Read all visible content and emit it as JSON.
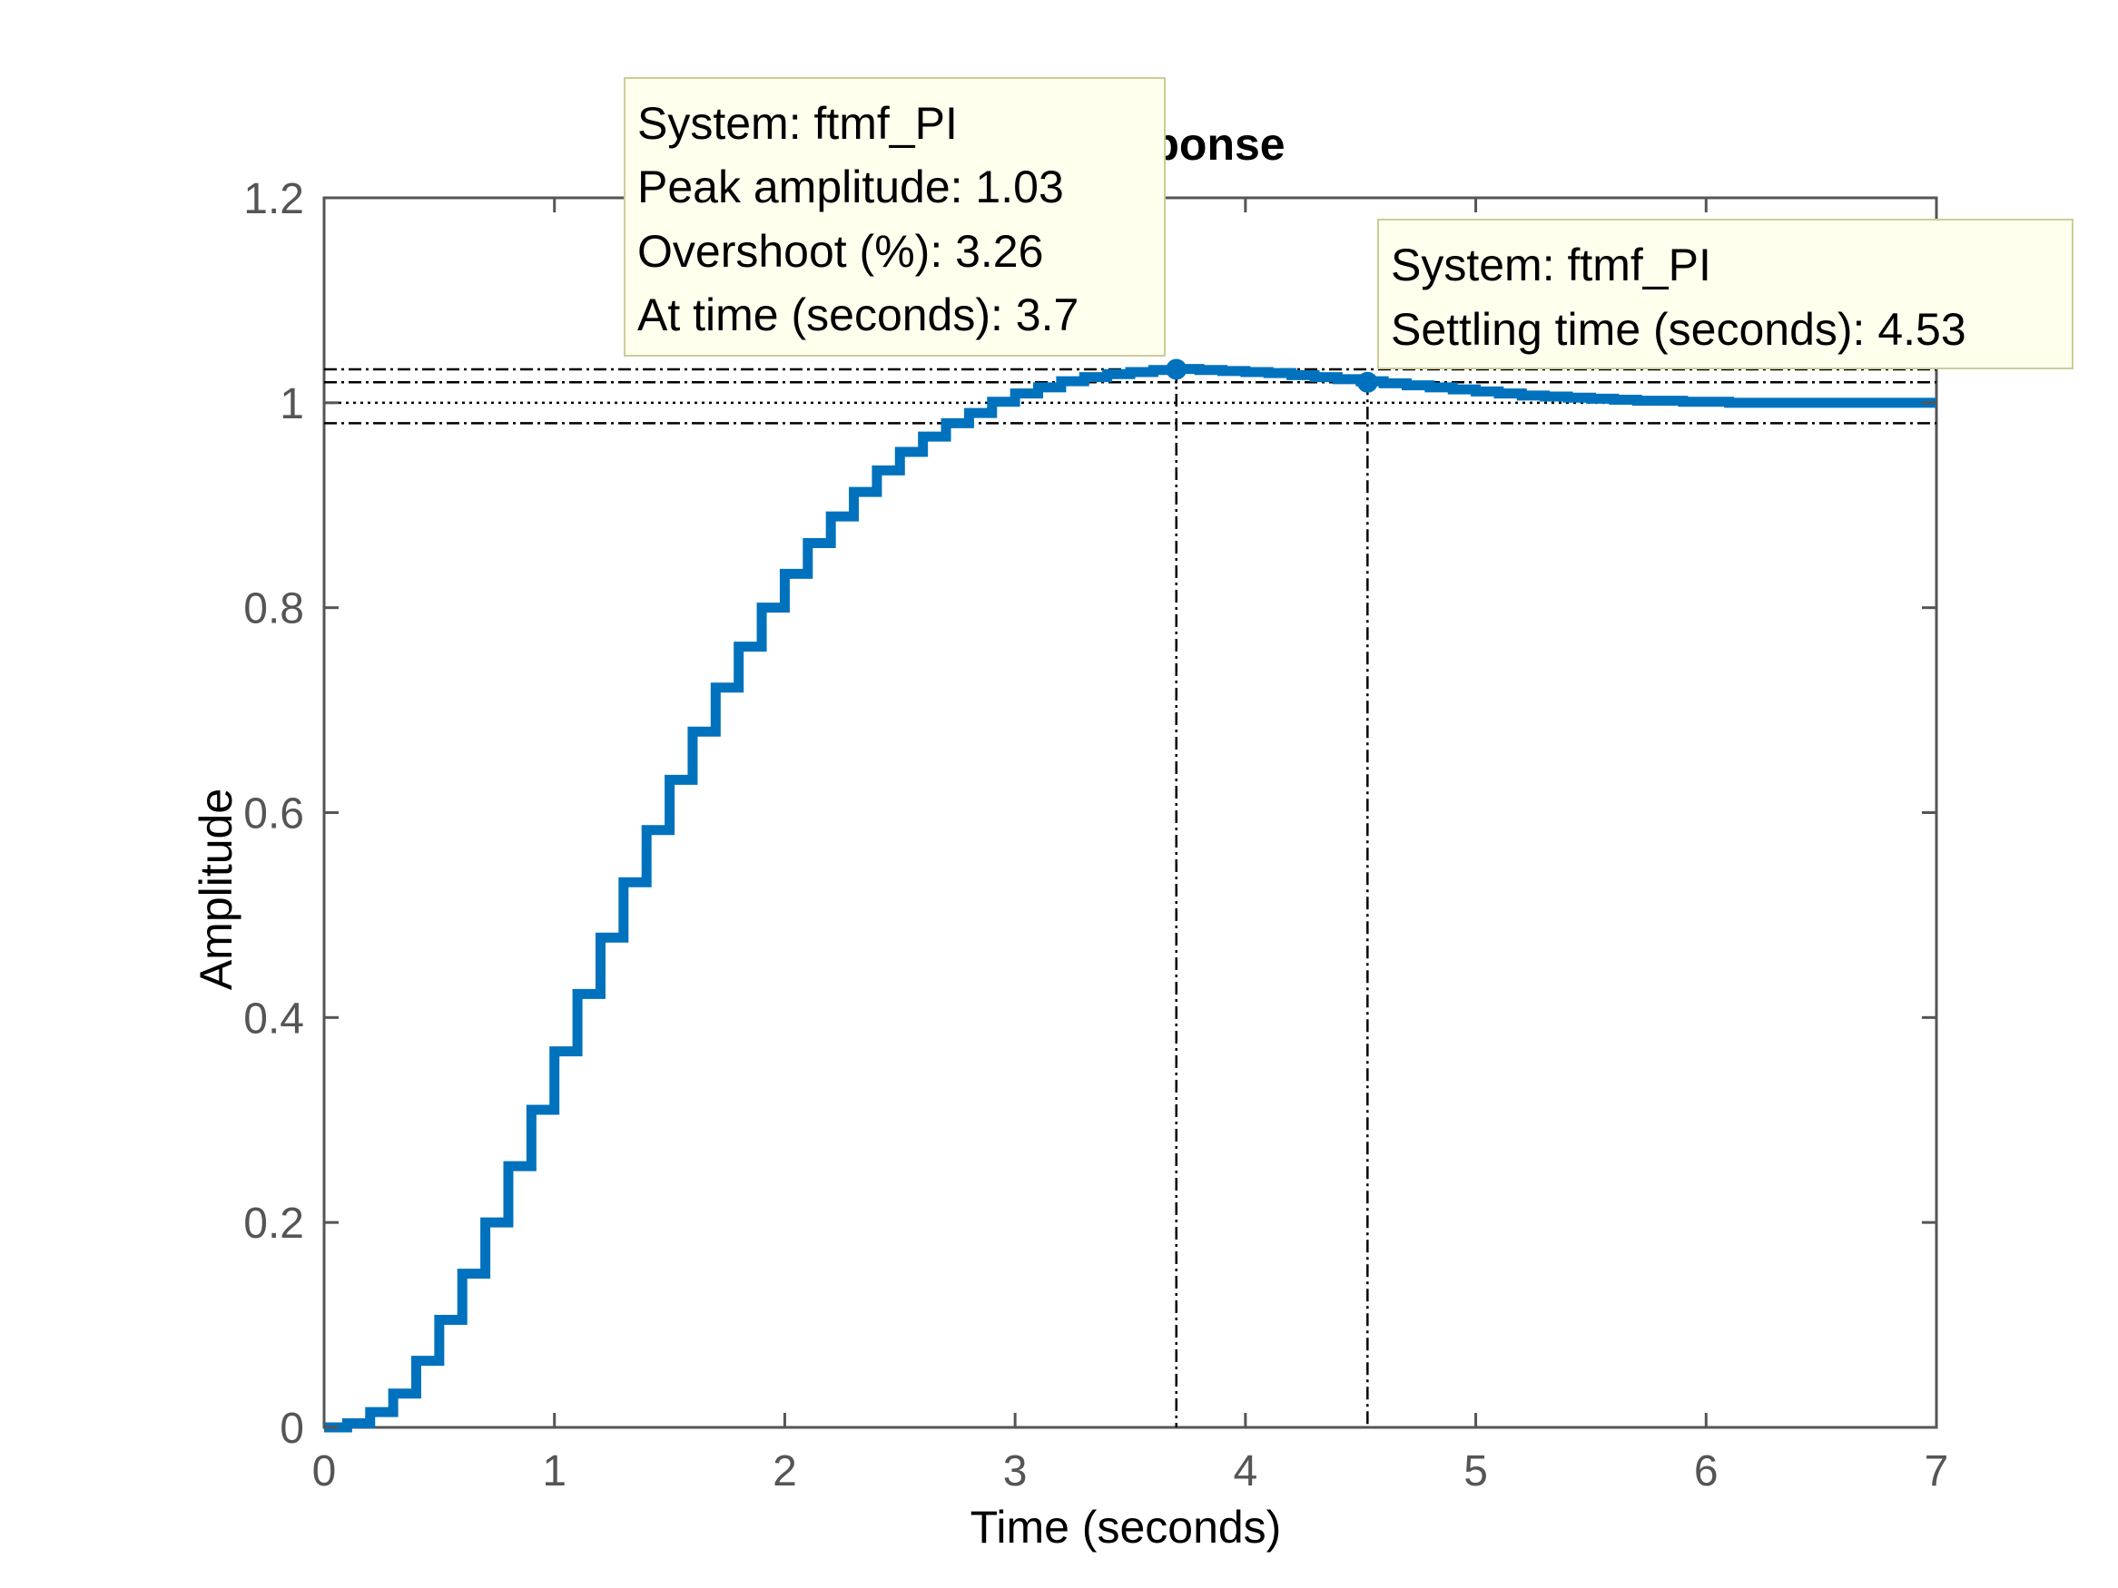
{
  "chart_data": {
    "type": "line",
    "title": "Step Response",
    "xlabel": "Time (seconds)",
    "ylabel": "Amplitude",
    "xlim": [
      0,
      7
    ],
    "ylim": [
      0,
      1.2
    ],
    "x_ticks": [
      "0",
      "1",
      "2",
      "3",
      "4",
      "5",
      "6",
      "7"
    ],
    "y_ticks": [
      "0",
      "0.2",
      "0.4",
      "0.6",
      "0.8",
      "1",
      "1.2"
    ],
    "grid": false,
    "step_interval": 0.1,
    "series": [
      {
        "name": "ftmf_PI",
        "color": "#0072BD",
        "style": "stairs",
        "x": [
          0,
          0.1,
          0.2,
          0.3,
          0.4,
          0.5,
          0.6,
          0.7,
          0.8,
          0.9,
          1.0,
          1.1,
          1.2,
          1.3,
          1.4,
          1.5,
          1.6,
          1.7,
          1.8,
          1.9,
          2.0,
          2.1,
          2.2,
          2.3,
          2.4,
          2.5,
          2.6,
          2.7,
          2.8,
          2.9,
          3.0,
          3.1,
          3.2,
          3.3,
          3.4,
          3.5,
          3.6,
          3.7,
          3.8,
          3.9,
          4.0,
          4.1,
          4.2,
          4.3,
          4.4,
          4.5,
          4.6,
          4.7,
          4.8,
          4.9,
          5.0,
          5.1,
          5.2,
          5.3,
          5.4,
          5.5,
          5.6,
          5.7,
          5.8,
          5.9,
          6.0,
          6.1,
          6.2,
          6.3,
          6.4,
          6.5,
          6.6,
          6.7,
          6.8,
          6.9,
          7.0
        ],
        "y": [
          0,
          0.004,
          0.015,
          0.033,
          0.065,
          0.105,
          0.15,
          0.2,
          0.255,
          0.31,
          0.367,
          0.423,
          0.478,
          0.532,
          0.583,
          0.632,
          0.679,
          0.722,
          0.762,
          0.8,
          0.833,
          0.863,
          0.889,
          0.913,
          0.934,
          0.952,
          0.967,
          0.98,
          0.99,
          1.001,
          1.009,
          1.015,
          1.021,
          1.025,
          1.028,
          1.03,
          1.032,
          1.033,
          1.032,
          1.031,
          1.03,
          1.029,
          1.027,
          1.025,
          1.023,
          1.021,
          1.019,
          1.017,
          1.015,
          1.013,
          1.011,
          1.009,
          1.007,
          1.006,
          1.005,
          1.004,
          1.003,
          1.002,
          1.002,
          1.001,
          1.001,
          1.0,
          1.0,
          1.0,
          1.0,
          1.0,
          1.0,
          1.0,
          1.0,
          1.0,
          1.0
        ]
      }
    ],
    "reference_lines": {
      "final_value": 1.0,
      "peak_level": 1.0326,
      "settling_band_upper": 1.02,
      "settling_band_lower": 0.98,
      "peak_time": 3.7,
      "settling_time": 4.53
    },
    "markers": [
      {
        "x": 3.7,
        "y": 1.0326
      },
      {
        "x": 4.53,
        "y": 1.02
      }
    ]
  },
  "datatips": {
    "peak": {
      "lines": [
        "System: ftmf_PI",
        "Peak amplitude: 1.03",
        "Overshoot (%): 3.26",
        "At time (seconds): 3.7"
      ]
    },
    "settling": {
      "lines": [
        "System: ftmf_PI",
        "Settling time (seconds): 4.53"
      ]
    }
  },
  "colors": {
    "line": "#0072BD",
    "axes": "#555555",
    "datatip_bg": "#FFFFEE",
    "datatip_border": "#CCCC99"
  }
}
